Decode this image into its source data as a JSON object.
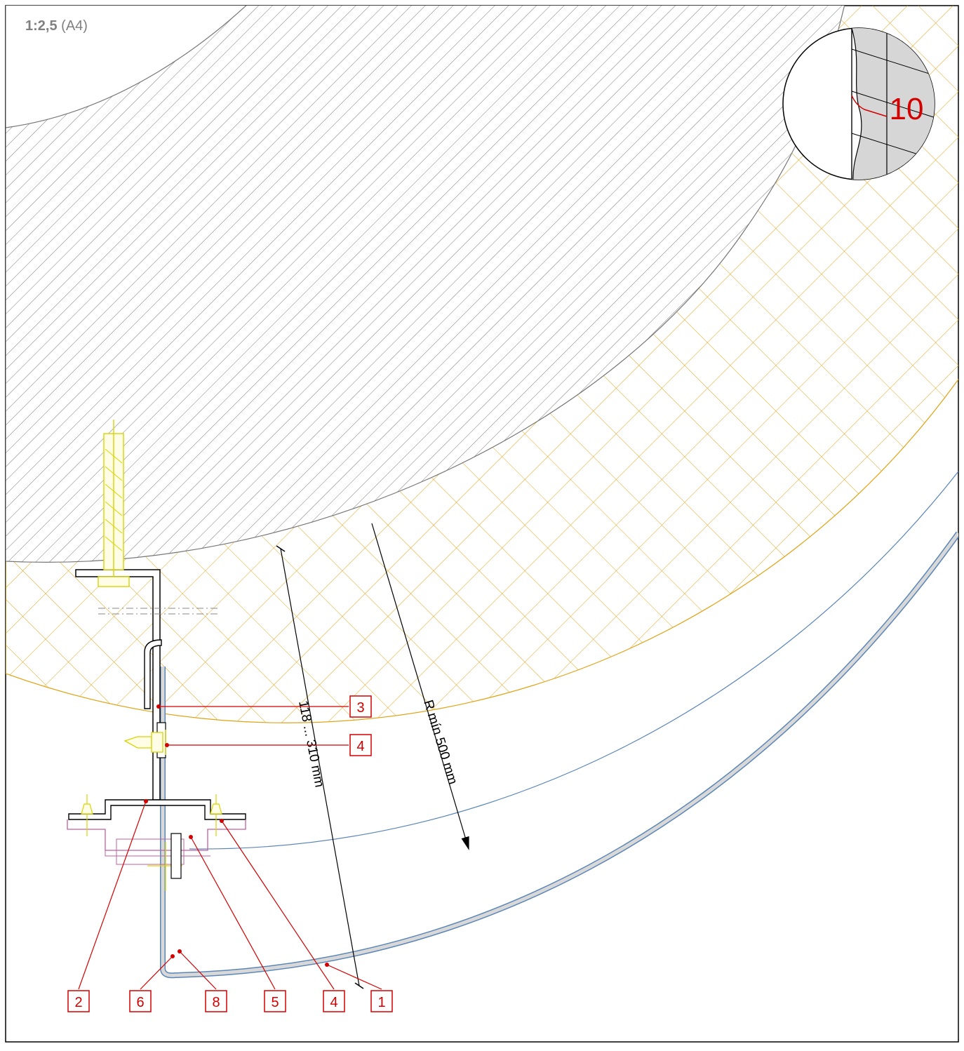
{
  "scale": {
    "ratio": "1:2,5",
    "paper": "(A4)"
  },
  "detail": {
    "label": "10"
  },
  "dimensions": {
    "thickness": "118 ... 310 mm",
    "radius": "R mín 500 mm"
  },
  "callouts": {
    "c1": "1",
    "c2": "2",
    "c3": "3",
    "c4a": "4",
    "c4b": "4",
    "c5": "5",
    "c6": "6",
    "c8": "8"
  },
  "colors": {
    "concrete_hatch": "#6e6e6e",
    "insulation": "#e0a418",
    "cladding": "#5b86b8",
    "callout": "#d40000",
    "fastener": "#d9d400",
    "profile": "#c060a0"
  }
}
